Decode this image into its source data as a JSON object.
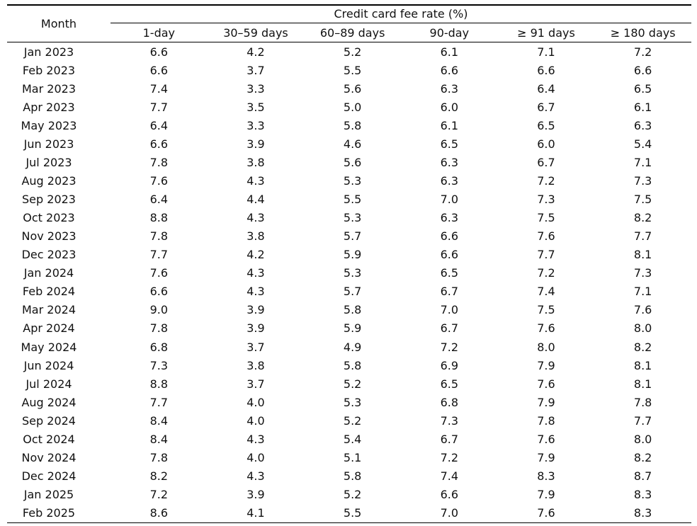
{
  "table": {
    "month_header": "Month",
    "group_header": "Credit card fee rate (%)",
    "columns": [
      "1-day",
      "30–59 days",
      "60–89 days",
      "90-day",
      "≥ 91 days",
      "≥ 180 days"
    ],
    "rows": [
      {
        "month": "Jan 2023",
        "values": [
          "6.6",
          "4.2",
          "5.2",
          "6.1",
          "7.1",
          "7.2"
        ]
      },
      {
        "month": "Feb 2023",
        "values": [
          "6.6",
          "3.7",
          "5.5",
          "6.6",
          "6.6",
          "6.6"
        ]
      },
      {
        "month": "Mar 2023",
        "values": [
          "7.4",
          "3.3",
          "5.6",
          "6.3",
          "6.4",
          "6.5"
        ]
      },
      {
        "month": "Apr 2023",
        "values": [
          "7.7",
          "3.5",
          "5.0",
          "6.0",
          "6.7",
          "6.1"
        ]
      },
      {
        "month": "May 2023",
        "values": [
          "6.4",
          "3.3",
          "5.8",
          "6.1",
          "6.5",
          "6.3"
        ]
      },
      {
        "month": "Jun 2023",
        "values": [
          "6.6",
          "3.9",
          "4.6",
          "6.5",
          "6.0",
          "5.4"
        ]
      },
      {
        "month": "Jul 2023",
        "values": [
          "7.8",
          "3.8",
          "5.6",
          "6.3",
          "6.7",
          "7.1"
        ]
      },
      {
        "month": "Aug 2023",
        "values": [
          "7.6",
          "4.3",
          "5.3",
          "6.3",
          "7.2",
          "7.3"
        ]
      },
      {
        "month": "Sep 2023",
        "values": [
          "6.4",
          "4.4",
          "5.5",
          "7.0",
          "7.3",
          "7.5"
        ]
      },
      {
        "month": "Oct 2023",
        "values": [
          "8.8",
          "4.3",
          "5.3",
          "6.3",
          "7.5",
          "8.2"
        ]
      },
      {
        "month": "Nov 2023",
        "values": [
          "7.8",
          "3.8",
          "5.7",
          "6.6",
          "7.6",
          "7.7"
        ]
      },
      {
        "month": "Dec 2023",
        "values": [
          "7.7",
          "4.2",
          "5.9",
          "6.6",
          "7.7",
          "8.1"
        ]
      },
      {
        "month": "Jan 2024",
        "values": [
          "7.6",
          "4.3",
          "5.3",
          "6.5",
          "7.2",
          "7.3"
        ]
      },
      {
        "month": "Feb 2024",
        "values": [
          "6.6",
          "4.3",
          "5.7",
          "6.7",
          "7.4",
          "7.1"
        ]
      },
      {
        "month": "Mar 2024",
        "values": [
          "9.0",
          "3.9",
          "5.8",
          "7.0",
          "7.5",
          "7.6"
        ]
      },
      {
        "month": "Apr 2024",
        "values": [
          "7.8",
          "3.9",
          "5.9",
          "6.7",
          "7.6",
          "8.0"
        ]
      },
      {
        "month": "May 2024",
        "values": [
          "6.8",
          "3.7",
          "4.9",
          "7.2",
          "8.0",
          "8.2"
        ]
      },
      {
        "month": "Jun 2024",
        "values": [
          "7.3",
          "3.8",
          "5.8",
          "6.9",
          "7.9",
          "8.1"
        ]
      },
      {
        "month": "Jul 2024",
        "values": [
          "8.8",
          "3.7",
          "5.2",
          "6.5",
          "7.6",
          "8.1"
        ]
      },
      {
        "month": "Aug 2024",
        "values": [
          "7.7",
          "4.0",
          "5.3",
          "6.8",
          "7.9",
          "7.8"
        ]
      },
      {
        "month": "Sep 2024",
        "values": [
          "8.4",
          "4.0",
          "5.2",
          "7.3",
          "7.8",
          "7.7"
        ]
      },
      {
        "month": "Oct 2024",
        "values": [
          "8.4",
          "4.3",
          "5.4",
          "6.7",
          "7.6",
          "8.0"
        ]
      },
      {
        "month": "Nov 2024",
        "values": [
          "7.8",
          "4.0",
          "5.1",
          "7.2",
          "7.9",
          "8.2"
        ]
      },
      {
        "month": "Dec 2024",
        "values": [
          "8.2",
          "4.3",
          "5.8",
          "7.4",
          "8.3",
          "8.7"
        ]
      },
      {
        "month": "Jan 2025",
        "values": [
          "7.2",
          "3.9",
          "5.2",
          "6.6",
          "7.9",
          "8.3"
        ]
      },
      {
        "month": "Feb 2025",
        "values": [
          "8.6",
          "4.1",
          "5.5",
          "7.0",
          "7.6",
          "8.3"
        ]
      }
    ]
  }
}
